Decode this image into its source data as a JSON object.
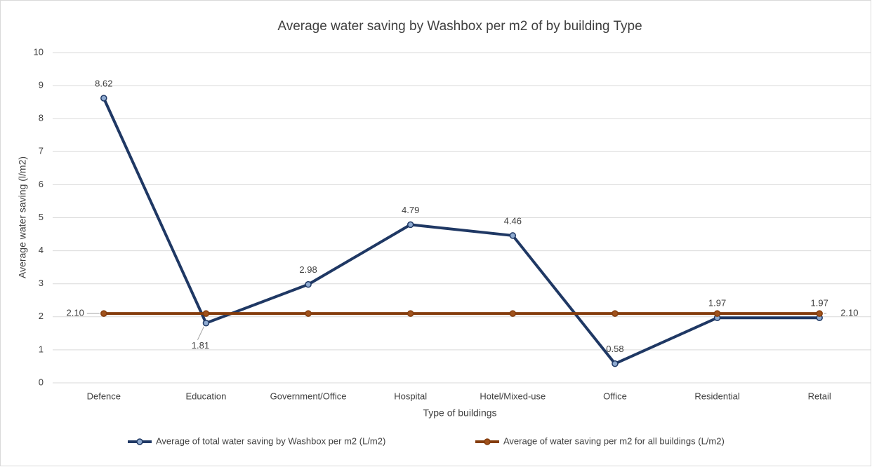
{
  "chart_data": {
    "type": "line",
    "title": "Average water saving by Washbox per m2 of by building Type",
    "x_label": "Type of buildings",
    "y_label": "Average water saving (l/m2)",
    "categories": [
      "Defence",
      "Education",
      "Government/Office",
      "Hospital",
      "Hotel/Mixed-use",
      "Office",
      "Residential",
      "Retail"
    ],
    "series": [
      {
        "name": "Average of total water saving by Washbox per m2 (L/m2)",
        "color": "#1f3864",
        "marker_fill": "#8eaad0",
        "values": [
          8.62,
          1.81,
          2.98,
          4.79,
          4.46,
          0.58,
          1.97,
          1.97
        ]
      },
      {
        "name": "Average of water saving per m2 for all buildings (L/m2)",
        "color": "#843c0c",
        "marker_fill": "#a0521c",
        "values": [
          2.1,
          2.1,
          2.1,
          2.1,
          2.1,
          2.1,
          2.1,
          2.1
        ],
        "value_labels": [
          "2.10",
          null,
          null,
          null,
          null,
          null,
          null,
          "2.10"
        ]
      }
    ],
    "ylim": [
      0,
      10
    ],
    "yticks": [
      0,
      1,
      2,
      3,
      4,
      5,
      6,
      7,
      8,
      9,
      10
    ],
    "grid": true,
    "legend": "bottom"
  }
}
